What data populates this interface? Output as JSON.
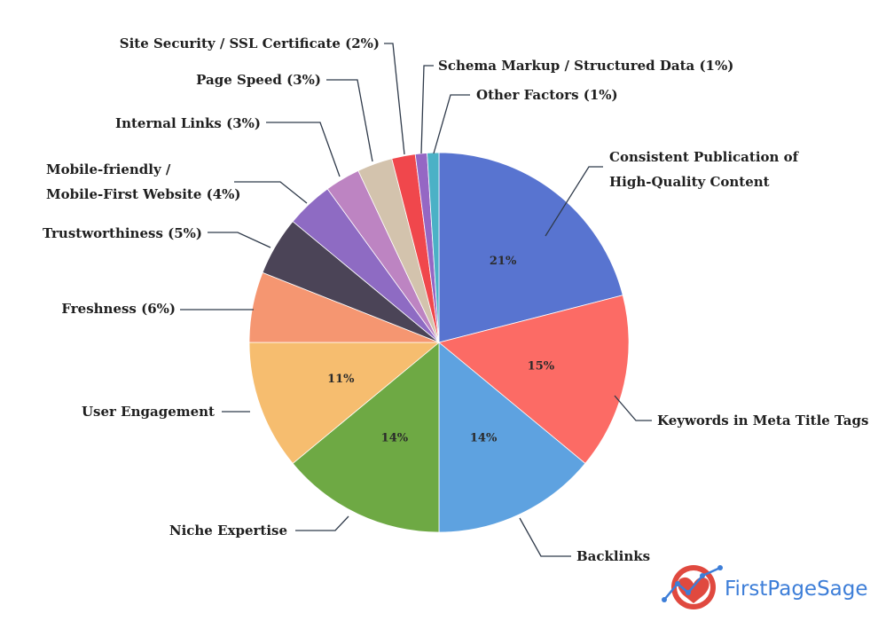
{
  "chart_data": {
    "type": "pie",
    "slices": [
      {
        "label": "Consistent Publication of High-Quality Content",
        "lines": [
          "Consistent Publication of",
          "High-Quality Content"
        ],
        "value": 21,
        "color": "#5874d0",
        "inner_label": "21%"
      },
      {
        "label": "Keywords in Meta Title Tags",
        "lines": [
          "Keywords in Meta Title Tags"
        ],
        "value": 15,
        "color": "#fc6b65",
        "inner_label": "15%"
      },
      {
        "label": "Backlinks",
        "lines": [
          "Backlinks"
        ],
        "value": 14,
        "color": "#5ea2e0",
        "inner_label": "14%"
      },
      {
        "label": "Niche Expertise",
        "lines": [
          "Niche Expertise"
        ],
        "value": 14,
        "color": "#6ea944",
        "inner_label": "14%"
      },
      {
        "label": "User Engagement",
        "lines": [
          "User Engagement"
        ],
        "value": 11,
        "color": "#f6bd6f",
        "inner_label": "11%"
      },
      {
        "label": "Freshness (6%)",
        "lines": [
          "Freshness (6%)"
        ],
        "value": 6,
        "color": "#f59671",
        "inner_label": ""
      },
      {
        "label": "Trustworthiness (5%)",
        "lines": [
          "Trustworthiness (5%)"
        ],
        "value": 5,
        "color": "#4b4457",
        "inner_label": ""
      },
      {
        "label": "Mobile-friendly / Mobile-First Website (4%)",
        "lines": [
          "Mobile-friendly /",
          "Mobile-First Website (4%)"
        ],
        "value": 4,
        "color": "#8e6bc3",
        "inner_label": ""
      },
      {
        "label": "Internal Links (3%)",
        "lines": [
          "Internal Links (3%)"
        ],
        "value": 3,
        "color": "#bd84c2",
        "inner_label": ""
      },
      {
        "label": "Page Speed (3%)",
        "lines": [
          "Page Speed (3%)"
        ],
        "value": 3,
        "color": "#d3c3ad",
        "inner_label": ""
      },
      {
        "label": "Site Security / SSL Certificate (2%)",
        "lines": [
          "Site Security / SSL Certificate (2%)"
        ],
        "value": 2,
        "color": "#f0474c",
        "inner_label": ""
      },
      {
        "label": "Schema Markup / Structured Data (1%)",
        "lines": [
          "Schema Markup / Structured Data (1%)"
        ],
        "value": 1,
        "color": "#9567c4",
        "inner_label": ""
      },
      {
        "label": "Other Factors (1%)",
        "lines": [
          "Other Factors (1%)"
        ],
        "value": 1,
        "color": "#4bb1c6",
        "inner_label": ""
      }
    ]
  },
  "branding": {
    "logo_text": "FirstPageSage",
    "logo_colors": {
      "heart": "#e0493f",
      "line": "#3d7ed8"
    }
  }
}
